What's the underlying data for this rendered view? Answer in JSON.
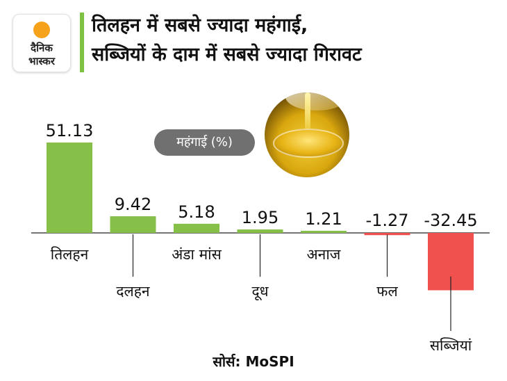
{
  "logo": {
    "line1": "दैनिक",
    "line2": "भास्कर",
    "sun_color": "#f7a21b"
  },
  "title_lines": [
    "तिलहन में सबसे ज्यादा महंगाई,",
    "सब्जियों के दाम में सबसे ज्यादा गिरावट"
  ],
  "legend_pill": "महंगाई (%)",
  "source": "सोर्स: MoSPI",
  "colors": {
    "positive": "#86c049",
    "negative": "#f0514f",
    "accent": "#7dc242"
  },
  "chart_data": {
    "type": "bar",
    "categories": [
      "तिलहन",
      "दलहन",
      "अंडा मांस",
      "दूध",
      "अनाज",
      "फल",
      "सब्जियां"
    ],
    "values": [
      51.13,
      9.42,
      5.18,
      1.95,
      1.21,
      -1.27,
      -32.45
    ],
    "value_labels": [
      "51.13",
      "9.42",
      "5.18",
      "1.95",
      "1.21",
      "-1.27",
      "-32.45"
    ],
    "title": "",
    "xlabel": "",
    "ylabel": "",
    "ylim": [
      -32.45,
      51.13
    ],
    "grid": false,
    "legend": "महंगाई (%)"
  }
}
